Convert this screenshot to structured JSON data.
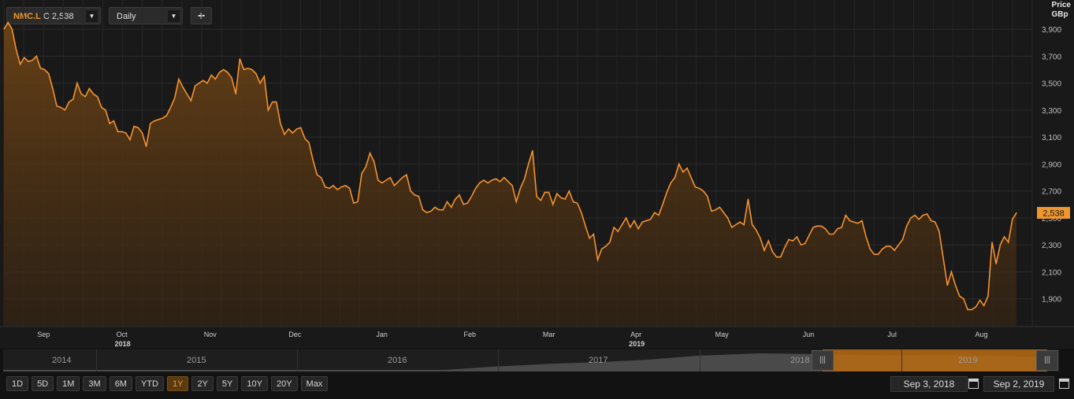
{
  "toolbar": {
    "ric": "NMC.L",
    "close_prefix": "C",
    "close_value": "2,538",
    "frequency": "Daily",
    "add_label": "+"
  },
  "axis": {
    "title_line1": "Price",
    "title_line2": "GBp"
  },
  "last_price_label": "2,538",
  "navigator": {
    "years": [
      "2014",
      "2015",
      "2016",
      "2017",
      "2018",
      "2019"
    ]
  },
  "range_buttons": [
    "1D",
    "5D",
    "1M",
    "3M",
    "6M",
    "YTD",
    "1Y",
    "2Y",
    "5Y",
    "10Y",
    "20Y",
    "Max"
  ],
  "active_range": "1Y",
  "date_from": "Sep 3, 2018",
  "date_to": "Sep 2, 2019",
  "colors": {
    "line": "#f5922f",
    "fill": "#6b4316",
    "bg": "#191919",
    "grid": "#2c2c2c",
    "accent": "#f0962e"
  },
  "chart_data": {
    "type": "area",
    "ylabel": "Price GBp",
    "ylim": [
      1700,
      4000
    ],
    "y_ticks": [
      "1,900",
      "2,100",
      "2,300",
      "2,500",
      "2,700",
      "2,900",
      "3,100",
      "3,300",
      "3,500",
      "3,700",
      "3,900"
    ],
    "y_tick_values": [
      1900,
      2100,
      2300,
      2500,
      2700,
      2900,
      3100,
      3300,
      3500,
      3700,
      3900
    ],
    "x_tick_labels": [
      "Sep",
      "Oct",
      "Nov",
      "Dec",
      "Jan",
      "Feb",
      "Mar",
      "Apr",
      "May",
      "Jun",
      "Jul",
      "Aug"
    ],
    "year_labels": [
      "2018",
      "2019"
    ],
    "x_start": "2018-09-03",
    "x_end": "2019-09-02",
    "series": [
      {
        "values": [
          3900,
          3950,
          3900,
          3750,
          3640,
          3690,
          3660,
          3670,
          3700,
          3610,
          3600,
          3570,
          3460,
          3330,
          3320,
          3300,
          3360,
          3380,
          3500,
          3420,
          3400,
          3460,
          3420,
          3400,
          3320,
          3300,
          3200,
          3220,
          3140,
          3140,
          3130,
          3080,
          3180,
          3170,
          3130,
          3030,
          3200,
          3220,
          3230,
          3240,
          3260,
          3320,
          3390,
          3530,
          3470,
          3420,
          3370,
          3480,
          3500,
          3520,
          3500,
          3560,
          3530,
          3580,
          3600,
          3580,
          3540,
          3420,
          3680,
          3600,
          3610,
          3600,
          3570,
          3500,
          3550,
          3300,
          3360,
          3360,
          3200,
          3120,
          3160,
          3130,
          3160,
          3170,
          3090,
          3060,
          2930,
          2820,
          2800,
          2730,
          2720,
          2740,
          2710,
          2730,
          2740,
          2720,
          2610,
          2620,
          2830,
          2880,
          2980,
          2920,
          2780,
          2760,
          2780,
          2800,
          2740,
          2770,
          2800,
          2820,
          2700,
          2670,
          2660,
          2560,
          2540,
          2550,
          2580,
          2560,
          2560,
          2620,
          2580,
          2640,
          2670,
          2600,
          2610,
          2660,
          2720,
          2760,
          2780,
          2760,
          2780,
          2790,
          2770,
          2800,
          2770,
          2740,
          2620,
          2720,
          2790,
          2900,
          3000,
          2660,
          2630,
          2690,
          2690,
          2600,
          2680,
          2650,
          2640,
          2700,
          2620,
          2610,
          2540,
          2440,
          2350,
          2380,
          2190,
          2270,
          2290,
          2320,
          2430,
          2400,
          2450,
          2500,
          2430,
          2480,
          2420,
          2470,
          2480,
          2490,
          2540,
          2520,
          2600,
          2690,
          2760,
          2800,
          2900,
          2840,
          2870,
          2800,
          2730,
          2720,
          2700,
          2660,
          2550,
          2560,
          2580,
          2540,
          2500,
          2430,
          2450,
          2470,
          2450,
          2640,
          2450,
          2410,
          2350,
          2260,
          2330,
          2250,
          2210,
          2210,
          2280,
          2340,
          2330,
          2360,
          2300,
          2310,
          2370,
          2430,
          2440,
          2440,
          2420,
          2380,
          2380,
          2420,
          2430,
          2520,
          2480,
          2470,
          2460,
          2480,
          2360,
          2270,
          2230,
          2230,
          2270,
          2290,
          2290,
          2260,
          2300,
          2340,
          2440,
          2500,
          2520,
          2490,
          2520,
          2530,
          2480,
          2470,
          2400,
          2200,
          2000,
          2100,
          2000,
          1920,
          1900,
          1820,
          1820,
          1840,
          1890,
          1850,
          1920,
          2320,
          2160,
          2300,
          2360,
          2320,
          2490,
          2538
        ]
      }
    ]
  }
}
